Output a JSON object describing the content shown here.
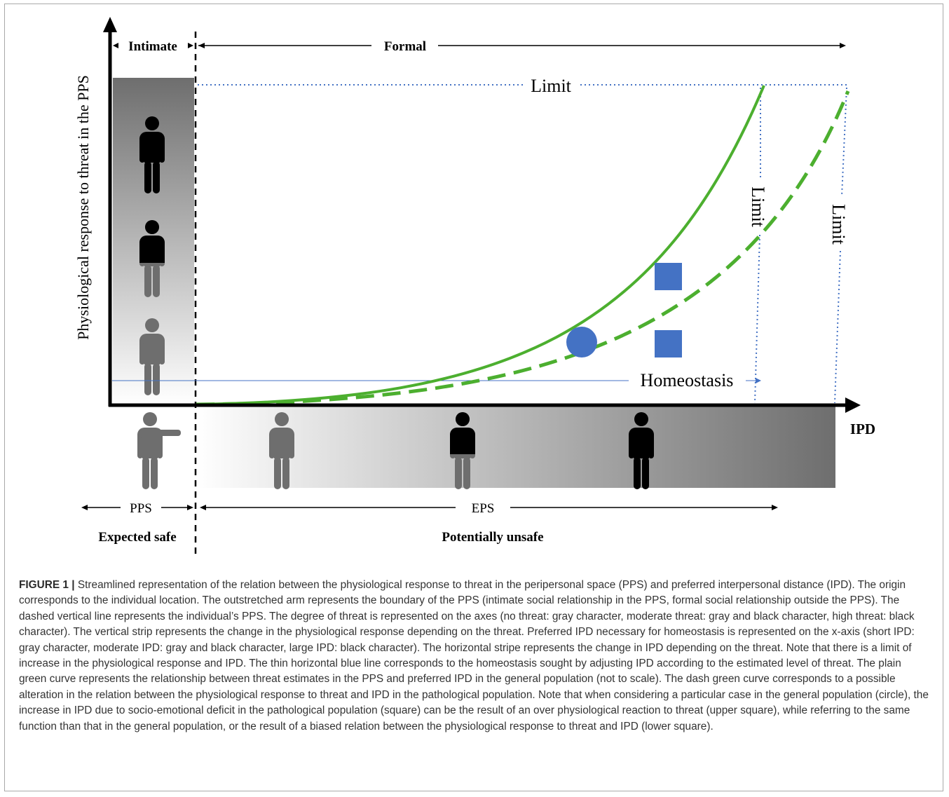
{
  "diagram": {
    "zone_labels": {
      "intimate": "Intimate",
      "formal": "Formal",
      "pps": "PPS",
      "eps": "EPS",
      "expected_safe": "Expected safe",
      "potentially_unsafe": "Potentially unsafe"
    },
    "y_axis_label": "Physiological response to threat in the PPS",
    "x_axis_label": "IPD",
    "limit_label_top": "Limit",
    "limit_label_curve": "Limit",
    "limit_label_dashed": "Limit",
    "homeostasis_label": "Homeostasis",
    "colors": {
      "curve": "#4caf2f",
      "markers": "#4472c4",
      "limit_line": "#4472c4",
      "homeostasis_line": "#4472c4",
      "axis": "#000000",
      "strip_dark": "#6e6e6e"
    },
    "vertical_strip_figures": [
      "person-black",
      "person-black-gray",
      "person-gray"
    ],
    "horizontal_strip_figures": [
      "person-outstretched-arm-gray",
      "person-gray",
      "person-black-gray",
      "person-black"
    ],
    "markers": [
      "circle",
      "upper-square",
      "lower-square"
    ]
  },
  "caption": {
    "label": "FIGURE 1 |",
    "text": "Streamlined representation of the relation between the physiological response to threat in the peripersonal space (PPS) and preferred interpersonal distance (IPD). The origin corresponds to the individual location. The outstretched arm represents the boundary of the PPS (intimate social relationship in the PPS, formal social relationship outside the PPS). The dashed vertical line represents the individual’s PPS. The degree of threat is represented on the axes (no threat: gray character, moderate threat: gray and black character, high threat: black character). The vertical strip represents the change in the physiological response depending on the threat. Preferred IPD necessary for homeostasis is represented on the x-axis (short IPD: gray character, moderate IPD: gray and black character, large IPD: black character). The horizontal stripe represents the change in IPD depending on the threat. Note that there is a limit of increase in the physiological response and IPD. The thin horizontal blue line corresponds to the homeostasis sought by adjusting IPD according to the estimated level of threat. The plain green curve represents the relationship between threat estimates in the PPS and preferred IPD in the general population (not to scale). The dash green curve corresponds to a possible alteration in the relation between the physiological response to threat and IPD in the pathological population. Note that when considering a particular case in the general population (circle), the increase in IPD due to socio-emotional deficit in the pathological population (square) can be the result of an over physiological reaction to threat (upper square), while referring to the same function than that in the general population, or the result of a biased relation between the physiological response to threat and IPD (lower square)."
  }
}
